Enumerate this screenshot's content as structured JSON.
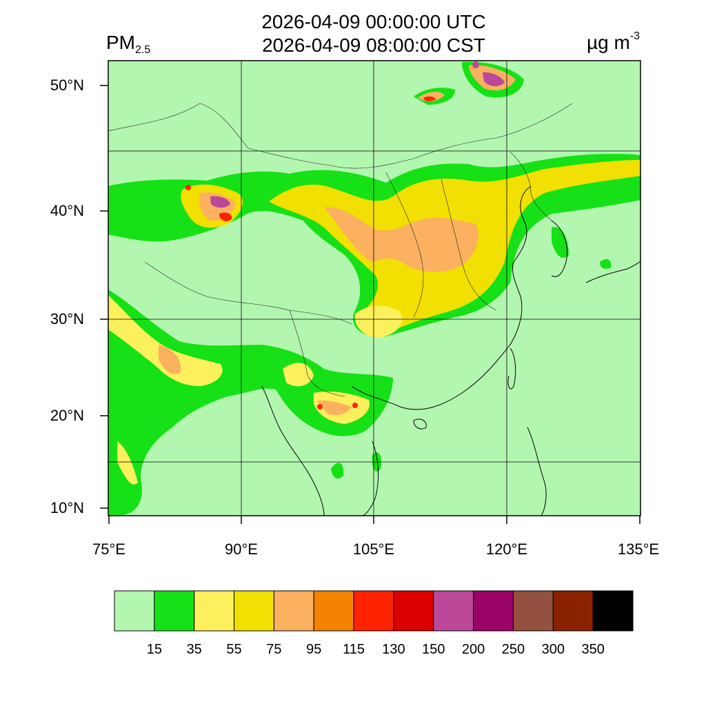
{
  "header": {
    "title_utc": "2026-04-09 00:00:00 UTC",
    "title_cst": "2026-04-09 08:00:00 CST",
    "variable_main": "PM",
    "variable_sub": "2.5",
    "unit_main": "µg m",
    "unit_sup": "-3"
  },
  "map": {
    "lat_labels": [
      "50°N",
      "40°N",
      "30°N",
      "20°N",
      "10°N"
    ],
    "lon_labels": [
      "75°E",
      "90°E",
      "105°E",
      "120°E",
      "135°E"
    ],
    "background_color": "#b3f6b0",
    "coastline_color": "#000000"
  },
  "colorbar": {
    "colors": [
      "#b3f6b0",
      "#16e116",
      "#fcf05c",
      "#f1e001",
      "#fbb15f",
      "#f48301",
      "#ff2200",
      "#dc0000",
      "#bb4898",
      "#9a0267",
      "#955140",
      "#8a2200",
      "#000000"
    ],
    "labels": [
      "15",
      "35",
      "55",
      "75",
      "95",
      "115",
      "130",
      "150",
      "200",
      "250",
      "300",
      "350"
    ]
  }
}
